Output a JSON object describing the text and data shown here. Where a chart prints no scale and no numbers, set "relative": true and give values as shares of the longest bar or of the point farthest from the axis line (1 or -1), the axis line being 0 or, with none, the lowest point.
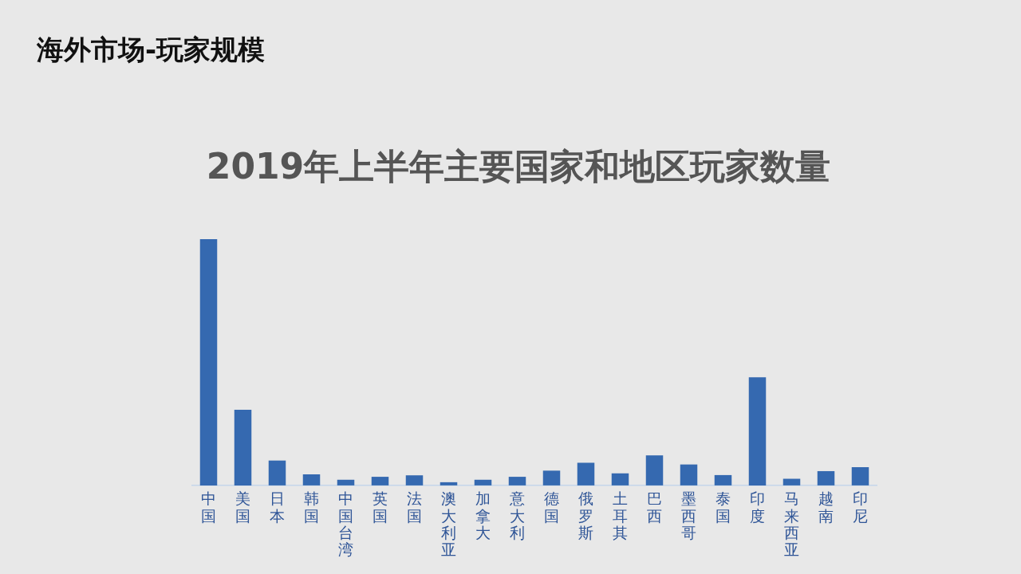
{
  "chart_data": {
    "type": "bar",
    "title": "海外市场-玩家规模",
    "subtitle": "2019年上半年主要国家和地区玩家数量",
    "categories": [
      "中国",
      "美国",
      "日本",
      "韩国",
      "中国台湾",
      "英国",
      "法国",
      "澳大利亚",
      "加拿大",
      "意大利",
      "德国",
      "俄罗斯",
      "土耳其",
      "巴西",
      "墨西哥",
      "泰国",
      "印度",
      "马来西亚",
      "越南",
      "印尼"
    ],
    "values": [
      1,
      0.307,
      0.101,
      0.045,
      0.023,
      0.035,
      0.041,
      0.013,
      0.023,
      0.035,
      0.06,
      0.092,
      0.049,
      0.122,
      0.085,
      0.042,
      0.439,
      0.027,
      0.058,
      0.074
    ],
    "color": "#3569b0",
    "relative": true,
    "grid": false,
    "legend": false
  }
}
